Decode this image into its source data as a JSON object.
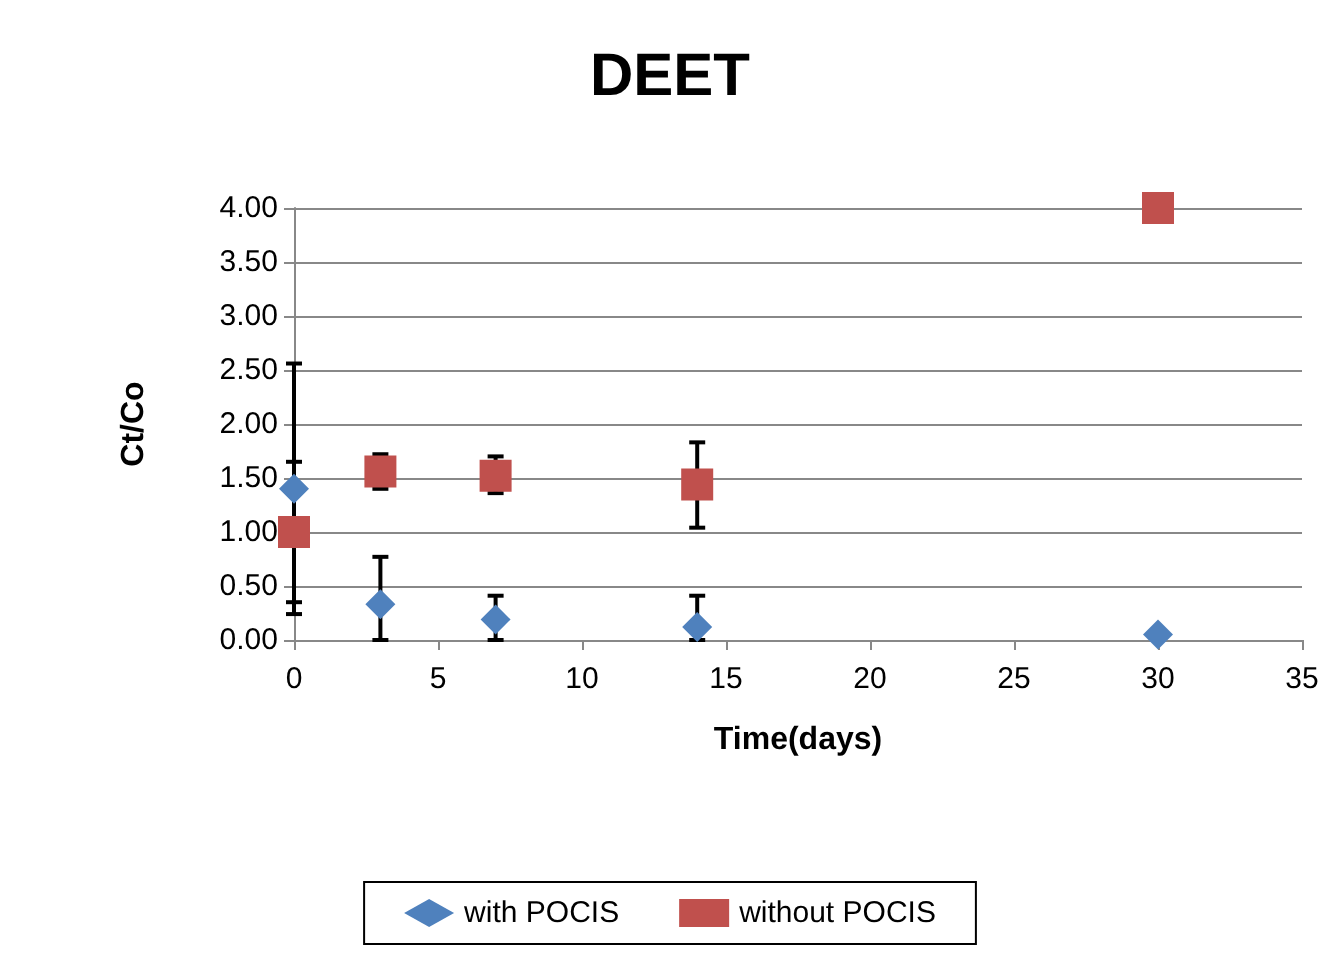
{
  "chart_data": {
    "type": "scatter",
    "title": "DEET",
    "xlabel": "Time(days)",
    "ylabel": "Ct/Co",
    "xlim": [
      0,
      35
    ],
    "xticks": [
      0,
      5,
      10,
      15,
      20,
      25,
      30,
      35
    ],
    "ylim": [
      0,
      4
    ],
    "yticks": [
      {
        "value": 0,
        "label": "0.00"
      },
      {
        "value": 0.5,
        "label": "0.50"
      },
      {
        "value": 1,
        "label": "1.00"
      },
      {
        "value": 1.5,
        "label": "1.50"
      },
      {
        "value": 2,
        "label": "2.00"
      },
      {
        "value": 2.5,
        "label": "2.50"
      },
      {
        "value": 3,
        "label": "3.00"
      },
      {
        "value": 3.5,
        "label": "3.50"
      },
      {
        "value": 4,
        "label": "4.00"
      }
    ],
    "grid": "y",
    "legend": "bottom",
    "series": [
      {
        "name": "with POCIS",
        "color": "#4f81bd",
        "marker": "diamond",
        "x": [
          0,
          3,
          7,
          14,
          30
        ],
        "values": [
          1.4,
          0.33,
          0.19,
          0.12,
          0.05
        ],
        "errors": [
          [
            0.24,
            2.56
          ],
          [
            0,
            0.77
          ],
          [
            0,
            0.41
          ],
          [
            0,
            0.41
          ],
          null
        ]
      },
      {
        "name": "without POCIS",
        "color": "#c0504d",
        "marker": "square",
        "x": [
          0,
          3,
          7,
          14,
          30
        ],
        "values": [
          1.0,
          1.56,
          1.52,
          1.44,
          4.0
        ],
        "errors": [
          [
            0.35,
            1.65
          ],
          [
            1.4,
            1.72
          ],
          [
            1.36,
            1.7
          ],
          [
            1.04,
            1.83
          ],
          null
        ]
      }
    ]
  }
}
